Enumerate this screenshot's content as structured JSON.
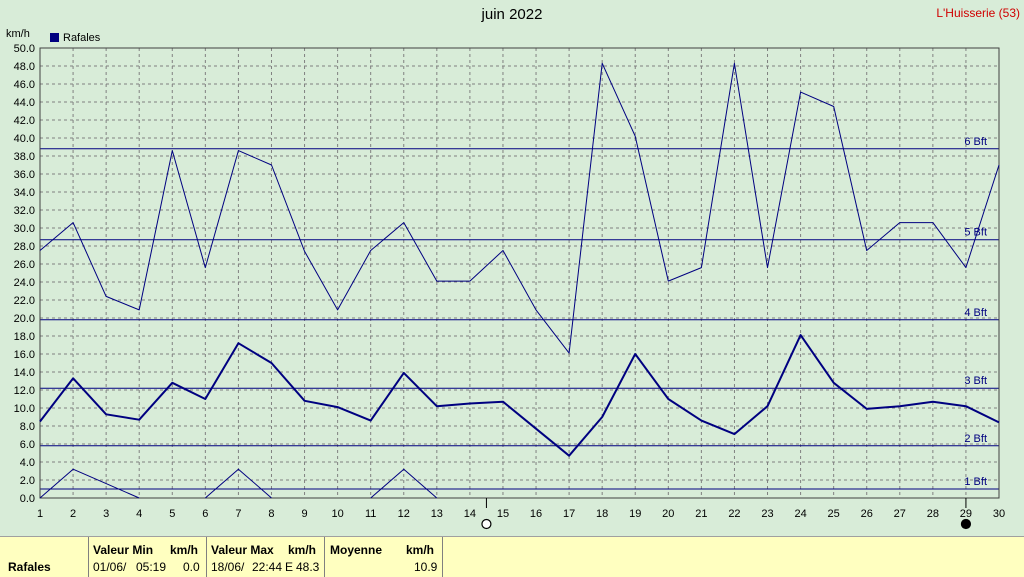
{
  "header": {
    "title": "juin 2022",
    "location": "L'Huisserie (53)",
    "unit": "km/h"
  },
  "legend": {
    "label": "Rafales"
  },
  "colors": {
    "series": "#000080",
    "background": "#d8ecd8",
    "grid": "#808080",
    "footer": "#ffffc0",
    "location": "#d00000"
  },
  "chart_data": {
    "type": "line",
    "ylim": [
      0,
      50
    ],
    "xlim": [
      1,
      30
    ],
    "grid": true,
    "legend_position": "top-left",
    "x": [
      1,
      2,
      3,
      4,
      5,
      6,
      7,
      8,
      9,
      10,
      11,
      12,
      13,
      14,
      15,
      16,
      17,
      18,
      19,
      20,
      21,
      22,
      23,
      24,
      25,
      26,
      27,
      28,
      29,
      30
    ],
    "x_ticks": [
      "1",
      "2",
      "3",
      "4",
      "5",
      "6",
      "7",
      "8",
      "9",
      "10",
      "11",
      "12",
      "13",
      "14",
      "15",
      "16",
      "17",
      "18",
      "19",
      "20",
      "21",
      "22",
      "23",
      "24",
      "25",
      "26",
      "27",
      "28",
      "29",
      "30"
    ],
    "y_ticks": [
      "0.0",
      "2.0",
      "4.0",
      "6.0",
      "8.0",
      "10.0",
      "12.0",
      "14.0",
      "16.0",
      "18.0",
      "20.0",
      "22.0",
      "24.0",
      "26.0",
      "28.0",
      "30.0",
      "32.0",
      "34.0",
      "36.0",
      "38.0",
      "40.0",
      "42.0",
      "44.0",
      "46.0",
      "48.0",
      "50.0"
    ],
    "series": [
      {
        "name": "Rafales",
        "role": "max",
        "values": [
          27.5,
          30.6,
          22.4,
          20.9,
          38.6,
          25.6,
          38.6,
          37.0,
          27.4,
          20.9,
          27.5,
          30.6,
          24.1,
          24.1,
          27.5,
          20.9,
          16.1,
          48.3,
          40.2,
          24.1,
          25.6,
          48.3,
          25.6,
          45.1,
          43.5,
          27.5,
          30.6,
          30.6,
          25.6,
          37.0
        ]
      },
      {
        "name": "Rafales",
        "role": "mean",
        "values": [
          8.5,
          13.3,
          9.3,
          8.7,
          12.8,
          11.0,
          17.2,
          15.0,
          10.8,
          10.1,
          8.6,
          13.9,
          10.2,
          10.5,
          10.7,
          7.7,
          4.7,
          9.0,
          16.0,
          11.0,
          8.6,
          7.1,
          10.2,
          18.1,
          12.8,
          9.9,
          10.2,
          10.7,
          10.2,
          8.4
        ]
      },
      {
        "name": "Rafales",
        "role": "min",
        "values": [
          0.0,
          3.2,
          1.6,
          0.0,
          null,
          0.0,
          3.2,
          0.0,
          null,
          null,
          0.0,
          3.2,
          0.0,
          null,
          null,
          null,
          null,
          null,
          null,
          null,
          null,
          null,
          null,
          null,
          null,
          null,
          null,
          null,
          null,
          null
        ]
      }
    ],
    "beaufort": [
      {
        "label": "1 Bft",
        "value": 1.0
      },
      {
        "label": "2 Bft",
        "value": 5.8
      },
      {
        "label": "3 Bft",
        "value": 12.2
      },
      {
        "label": "4 Bft",
        "value": 19.8
      },
      {
        "label": "5 Bft",
        "value": 28.7
      },
      {
        "label": "6 Bft",
        "value": 38.8
      }
    ],
    "moon": [
      {
        "phase": "full",
        "day": 14.5
      },
      {
        "phase": "new",
        "day": 29
      }
    ]
  },
  "footer": {
    "row_label": "Rafales",
    "min": {
      "header": "Valeur Min",
      "unit": "km/h",
      "date": "01/06/",
      "time": "05:19",
      "value": "0.0"
    },
    "max": {
      "header": "Valeur Max",
      "unit": "km/h",
      "date": "18/06/",
      "time": "22:44",
      "dir": "E",
      "value": "48.3"
    },
    "mean": {
      "header": "Moyenne",
      "unit": "km/h",
      "value": "10.9"
    }
  }
}
